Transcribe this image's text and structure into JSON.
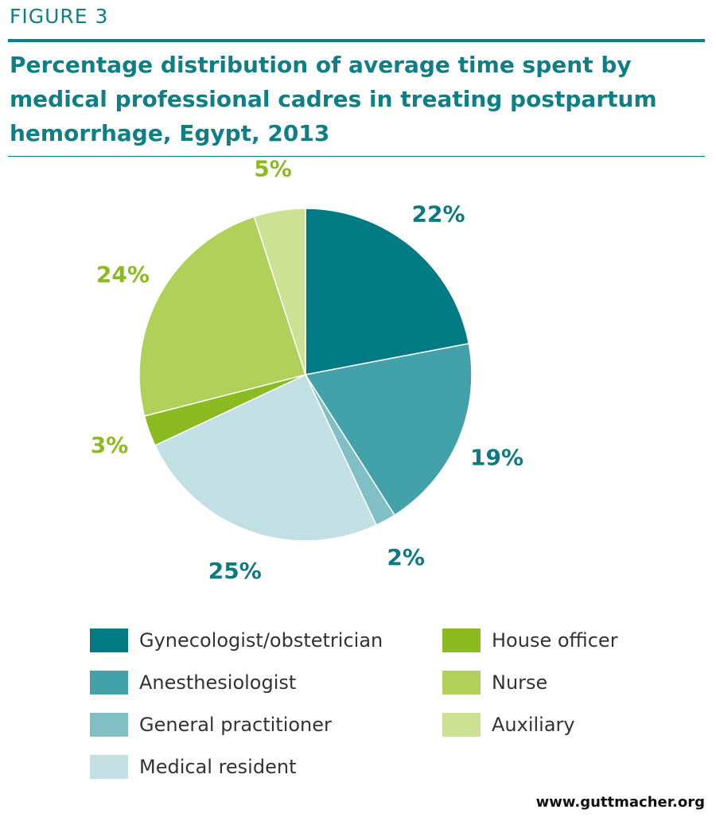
{
  "header": {
    "figure_label": "FIGURE 3",
    "title": "Percentage distribution of average time spent by medical professional cadres in treating postpartum hemorrhage, Egypt, 2013"
  },
  "chart_data": {
    "type": "pie",
    "title": "Percentage distribution of average time spent by medical professional cadres in treating postpartum hemorrhage, Egypt, 2013",
    "legend_position": "bottom",
    "slices": [
      {
        "name": "Gynecologist/obstetrician",
        "value": 22,
        "label": "22%",
        "color": "#007b83",
        "label_color": "#0d7a82"
      },
      {
        "name": "Anesthesiologist",
        "value": 19,
        "label": "19%",
        "color": "#43a1a9",
        "label_color": "#0d7a82"
      },
      {
        "name": "General practitioner",
        "value": 2,
        "label": "2%",
        "color": "#80c0c5",
        "label_color": "#0d7a82"
      },
      {
        "name": "Medical resident",
        "value": 25,
        "label": "25%",
        "color": "#c2e0e3",
        "label_color": "#0d7a82"
      },
      {
        "name": "House officer",
        "value": 3,
        "label": "3%",
        "color": "#8cbb21",
        "label_color": "#8cbb21"
      },
      {
        "name": "Nurse",
        "value": 24,
        "label": "24%",
        "color": "#b0d05a",
        "label_color": "#8cbb21"
      },
      {
        "name": "Auxiliary",
        "value": 5,
        "label": "5%",
        "color": "#cde195",
        "label_color": "#8cbb21"
      }
    ]
  },
  "footer": {
    "source": "www.guttmacher.org"
  }
}
